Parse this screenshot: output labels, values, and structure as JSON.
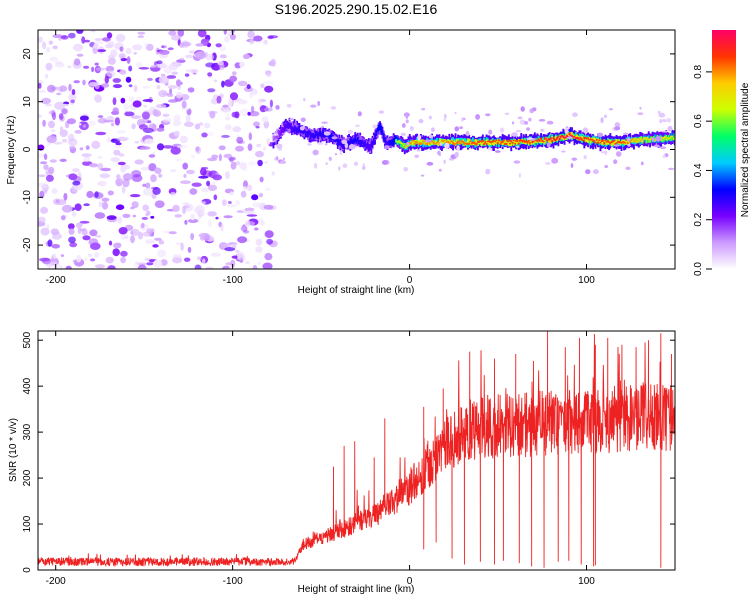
{
  "title": "S196.2025.290.15.02.E16",
  "chart_data": [
    {
      "type": "heatmap",
      "xlabel": "Height of straight line (km)",
      "ylabel": "Frequency (Hz)",
      "xlim": [
        -210,
        150
      ],
      "ylim": [
        -25,
        25
      ],
      "xticks": [
        -200,
        -100,
        0,
        100
      ],
      "yticks": [
        20,
        10,
        0,
        -10,
        -20
      ],
      "colorbar": {
        "label": "Normalized spectral amplitude",
        "range": [
          0,
          0.97
        ],
        "ticks": [
          0.0,
          0.2,
          0.4,
          0.6,
          0.8
        ],
        "colors": [
          "#ffffff",
          "#cc99ff",
          "#7700ff",
          "#0000ff",
          "#00ccff",
          "#00ff66",
          "#ccff00",
          "#ffcc00",
          "#ff3300",
          "#ff0066"
        ]
      },
      "noise_region": {
        "x": [
          -210,
          -77
        ],
        "f": [
          -25,
          25
        ],
        "amplitude": [
          0.02,
          0.25
        ]
      },
      "signal_track": {
        "x": [
          -77,
          -70,
          -62,
          -55,
          -45,
          -38,
          -30,
          -22,
          -17,
          -13,
          -8,
          -2,
          0,
          20,
          40,
          60,
          80,
          90,
          100,
          110,
          120,
          130,
          150
        ],
        "frequency": [
          2,
          5,
          4,
          3,
          3,
          1,
          2,
          0.5,
          5,
          1,
          2,
          0.5,
          1.5,
          1.5,
          1.5,
          1.5,
          2,
          3,
          2,
          1.5,
          1.5,
          2,
          2.5
        ],
        "amplitude": [
          0.25,
          0.45,
          0.5,
          0.5,
          0.55,
          0.5,
          0.55,
          0.45,
          0.6,
          0.5,
          0.6,
          0.75,
          0.8,
          0.8,
          0.85,
          0.85,
          0.9,
          0.95,
          0.85,
          0.85,
          0.85,
          0.75,
          0.7
        ]
      }
    },
    {
      "type": "line",
      "xlabel": "Height of straight line (km)",
      "ylabel": "SNR (10 * v/v)",
      "xlim": [
        -210,
        150
      ],
      "ylim": [
        0,
        520
      ],
      "xticks": [
        -200,
        -100,
        0,
        100
      ],
      "yticks": [
        500,
        400,
        300,
        200,
        100,
        0
      ],
      "color": "#ee2222",
      "trend": {
        "x": [
          -210,
          -150,
          -100,
          -65,
          -60,
          -40,
          -20,
          -10,
          0,
          10,
          20,
          30,
          40,
          60,
          80,
          100,
          120,
          150
        ],
        "snr": [
          18,
          18,
          18,
          18,
          55,
          85,
          120,
          145,
          180,
          225,
          270,
          300,
          310,
          315,
          320,
          325,
          330,
          335
        ]
      },
      "spikes": [
        {
          "x": -43,
          "snr": 225
        },
        {
          "x": -37,
          "snr": 270
        },
        {
          "x": -31,
          "snr": 280
        },
        {
          "x": -20,
          "snr": 245
        },
        {
          "x": -14,
          "snr": 330
        },
        {
          "x": 8,
          "snr": 355
        },
        {
          "x": 19,
          "snr": 395
        },
        {
          "x": 34,
          "snr": 475
        },
        {
          "x": 48,
          "snr": 460
        },
        {
          "x": 60,
          "snr": 470
        },
        {
          "x": 70,
          "snr": 455
        },
        {
          "x": 78,
          "snr": 520
        },
        {
          "x": 88,
          "snr": 485
        },
        {
          "x": 96,
          "snr": 505
        },
        {
          "x": 105,
          "snr": 490
        },
        {
          "x": 112,
          "snr": 505
        },
        {
          "x": 120,
          "snr": 490
        },
        {
          "x": 128,
          "snr": 485
        },
        {
          "x": 135,
          "snr": 500
        },
        {
          "x": 142,
          "snr": 515
        },
        {
          "x": 148,
          "snr": 470
        }
      ],
      "dips": [
        {
          "x": 8,
          "snr": 45
        },
        {
          "x": 15,
          "snr": 60
        },
        {
          "x": 24,
          "snr": 25
        },
        {
          "x": 31,
          "snr": 12
        },
        {
          "x": 40,
          "snr": 18
        },
        {
          "x": 48,
          "snr": 12
        },
        {
          "x": 53,
          "snr": 20
        },
        {
          "x": 62,
          "snr": 15
        },
        {
          "x": 69,
          "snr": 8
        },
        {
          "x": 76,
          "snr": 5
        },
        {
          "x": 84,
          "snr": 18
        },
        {
          "x": 90,
          "snr": 20
        },
        {
          "x": 97,
          "snr": 12
        },
        {
          "x": 104,
          "snr": 8
        },
        {
          "x": 105,
          "snr": 10
        },
        {
          "x": 142,
          "snr": 5
        }
      ]
    }
  ]
}
